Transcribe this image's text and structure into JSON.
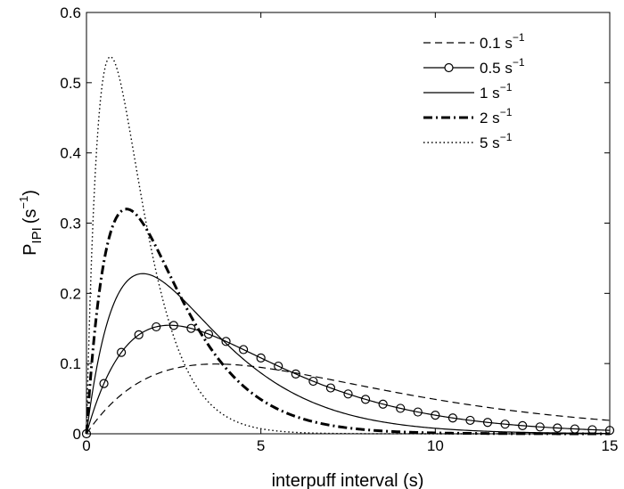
{
  "chart_data": {
    "type": "line",
    "xlabel": "interpuff interval (s)",
    "ylabel": {
      "main": "P",
      "sub": "IPI",
      "unit_open": "(s",
      "unit_sup": "−1",
      "unit_close": ")"
    },
    "xlim": [
      0,
      15
    ],
    "ylim": [
      0,
      0.6
    ],
    "xticks": [
      0,
      5,
      10,
      15
    ],
    "yticks": [
      0,
      0.1,
      0.2,
      0.3,
      0.4,
      0.5,
      0.6
    ],
    "xtick_labels": [
      "0",
      "5",
      "10",
      "15"
    ],
    "ytick_labels": [
      "0",
      "0.1",
      "0.2",
      "0.3",
      "0.4",
      "0.5",
      "0.6"
    ],
    "grid": false,
    "legend_position": "top-right",
    "model": "gamma k=2 density: P(t) = lambda^2 * t * exp(-lambda * t)",
    "series": [
      {
        "name": "0.1 s",
        "unit_sup": "−1",
        "rate": 0.27,
        "style": "dashed",
        "width": 1.2,
        "marker": "none"
      },
      {
        "name": "0.5 s",
        "unit_sup": "−1",
        "rate": 0.42,
        "style": "solid",
        "width": 1.2,
        "marker": "circle"
      },
      {
        "name": "1 s",
        "unit_sup": "−1",
        "rate": 0.62,
        "style": "solid",
        "width": 1.2,
        "marker": "none"
      },
      {
        "name": "2 s",
        "unit_sup": "−1",
        "rate": 0.87,
        "style": "dashdot",
        "width": 3,
        "marker": "none"
      },
      {
        "name": "5 s",
        "unit_sup": "−1",
        "rate": 1.46,
        "style": "dotted",
        "width": 1.4,
        "marker": "none"
      }
    ],
    "circle_marker_x": [
      0,
      0.5,
      1,
      1.5,
      2,
      2.5,
      3,
      3.5,
      4,
      4.5,
      5,
      5.5,
      6,
      6.5,
      7,
      7.5,
      8,
      8.5,
      9,
      9.5,
      10,
      10.5,
      11,
      11.5,
      12,
      12.5,
      13,
      13.5,
      14,
      14.5,
      15
    ]
  }
}
